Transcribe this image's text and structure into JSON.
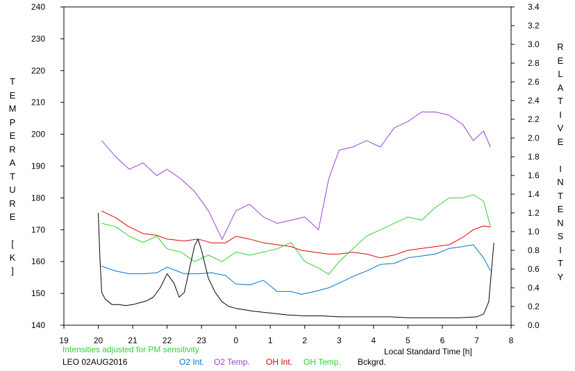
{
  "chart_data": {
    "type": "line",
    "title": "",
    "xlabel": "Local Standard Time [h]",
    "ylabel_left": "TEMPERATURE [K]",
    "ylabel_right": "RELATIVE INTENSITY",
    "left_axis": {
      "min": 140,
      "max": 240,
      "ticks": [
        "140",
        "150",
        "160",
        "170",
        "180",
        "190",
        "200",
        "210",
        "220",
        "230",
        "240"
      ]
    },
    "right_axis": {
      "min": 0.0,
      "max": 3.4,
      "ticks": [
        "0.0",
        "0.2",
        "0.4",
        "0.6",
        "0.8",
        "1.0",
        "1.2",
        "1.4",
        "1.6",
        "1.8",
        "2.0",
        "2.2",
        "2.4",
        "2.6",
        "2.8",
        "3.0",
        "3.2",
        "3.4"
      ]
    },
    "x_axis": {
      "hours_continuous_min": 19,
      "hours_continuous_max": 32,
      "tick_labels": [
        "19",
        "20",
        "21",
        "22",
        "23",
        "0",
        "1",
        "2",
        "3",
        "4",
        "5",
        "6",
        "7",
        "8"
      ]
    },
    "grid": false,
    "station_date": "LEO 02AUG2016",
    "note": "Intensities adjusted for PM sensitivity",
    "colors": {
      "o2_int": "#0070d0",
      "o2_temp": "#9a40d8",
      "oh_int": "#e00000",
      "oh_temp": "#30d030",
      "bckgrd": "#000000",
      "note": "#30d030"
    },
    "series": [
      {
        "name": "O2 Int.",
        "axis": "right",
        "x": [
          20.1,
          20.5,
          20.9,
          21.3,
          21.7,
          22.0,
          22.5,
          22.9,
          23.3,
          23.7,
          24.0,
          24.4,
          24.8,
          25.2,
          25.6,
          25.9,
          26.3,
          26.7,
          27.0,
          27.4,
          27.8,
          28.2,
          28.6,
          29.0,
          29.4,
          29.8,
          30.2,
          30.6,
          30.9,
          31.2,
          31.4
        ],
        "y": [
          0.63,
          0.58,
          0.55,
          0.55,
          0.56,
          0.62,
          0.55,
          0.55,
          0.56,
          0.53,
          0.44,
          0.43,
          0.48,
          0.36,
          0.36,
          0.33,
          0.36,
          0.4,
          0.45,
          0.52,
          0.58,
          0.65,
          0.66,
          0.72,
          0.74,
          0.76,
          0.82,
          0.84,
          0.86,
          0.72,
          0.58
        ]
      },
      {
        "name": "O2 Temp.",
        "axis": "left",
        "x": [
          20.1,
          20.5,
          20.9,
          21.3,
          21.7,
          22.0,
          22.4,
          22.8,
          23.2,
          23.6,
          24.0,
          24.4,
          24.8,
          25.2,
          25.6,
          26.0,
          26.4,
          26.7,
          27.0,
          27.4,
          27.8,
          28.2,
          28.6,
          29.0,
          29.4,
          29.8,
          30.2,
          30.6,
          30.9,
          31.2,
          31.4
        ],
        "y": [
          198,
          193,
          189,
          191,
          187,
          189,
          186,
          182,
          176,
          167,
          176,
          178,
          174,
          172,
          173,
          174,
          170,
          186,
          195,
          196,
          198,
          196,
          202,
          204,
          207,
          207,
          206,
          203,
          198,
          201,
          196
        ]
      },
      {
        "name": "OH Int.",
        "axis": "right",
        "x": [
          20.1,
          20.5,
          20.9,
          21.3,
          21.7,
          22.0,
          22.5,
          22.9,
          23.3,
          23.7,
          24.0,
          24.4,
          24.8,
          25.2,
          25.6,
          25.9,
          26.3,
          26.7,
          27.0,
          27.4,
          27.8,
          28.2,
          28.6,
          29.0,
          29.4,
          29.8,
          30.2,
          30.6,
          30.9,
          31.2,
          31.4
        ],
        "y": [
          1.22,
          1.15,
          1.05,
          0.98,
          0.96,
          0.92,
          0.9,
          0.92,
          0.88,
          0.88,
          0.95,
          0.92,
          0.88,
          0.86,
          0.84,
          0.8,
          0.78,
          0.76,
          0.76,
          0.78,
          0.76,
          0.72,
          0.75,
          0.8,
          0.82,
          0.84,
          0.86,
          0.94,
          1.02,
          1.06,
          1.05
        ]
      },
      {
        "name": "OH Temp.",
        "axis": "left",
        "x": [
          20.1,
          20.5,
          20.9,
          21.3,
          21.7,
          22.0,
          22.4,
          22.8,
          23.2,
          23.6,
          24.0,
          24.4,
          24.8,
          25.2,
          25.6,
          26.0,
          26.4,
          26.7,
          27.0,
          27.4,
          27.8,
          28.2,
          28.6,
          29.0,
          29.4,
          29.8,
          30.2,
          30.6,
          30.9,
          31.2,
          31.4
        ],
        "y": [
          172,
          171,
          168,
          166,
          168,
          164,
          163,
          160,
          162,
          160,
          163,
          162,
          163,
          164,
          166,
          160,
          158,
          156,
          160,
          164,
          168,
          170,
          172,
          174,
          173,
          177,
          180,
          180,
          181,
          179,
          171
        ]
      },
      {
        "name": "Bckgrd.",
        "axis": "right",
        "x": [
          20.0,
          20.05,
          20.1,
          20.2,
          20.4,
          20.6,
          20.8,
          21.0,
          21.2,
          21.4,
          21.6,
          21.8,
          22.0,
          22.2,
          22.35,
          22.5,
          22.65,
          22.8,
          22.9,
          23.0,
          23.2,
          23.4,
          23.6,
          23.8,
          24.0,
          24.5,
          25.0,
          25.5,
          26.0,
          26.5,
          27.0,
          27.5,
          28.0,
          28.5,
          29.0,
          29.5,
          30.0,
          30.5,
          31.0,
          31.2,
          31.35,
          31.5
        ],
        "y": [
          1.2,
          0.7,
          0.35,
          0.28,
          0.22,
          0.22,
          0.21,
          0.22,
          0.24,
          0.26,
          0.3,
          0.4,
          0.55,
          0.45,
          0.3,
          0.35,
          0.6,
          0.85,
          0.92,
          0.8,
          0.5,
          0.35,
          0.25,
          0.2,
          0.18,
          0.15,
          0.13,
          0.11,
          0.1,
          0.1,
          0.09,
          0.09,
          0.09,
          0.09,
          0.08,
          0.08,
          0.08,
          0.08,
          0.09,
          0.12,
          0.25,
          0.88
        ]
      }
    ]
  }
}
